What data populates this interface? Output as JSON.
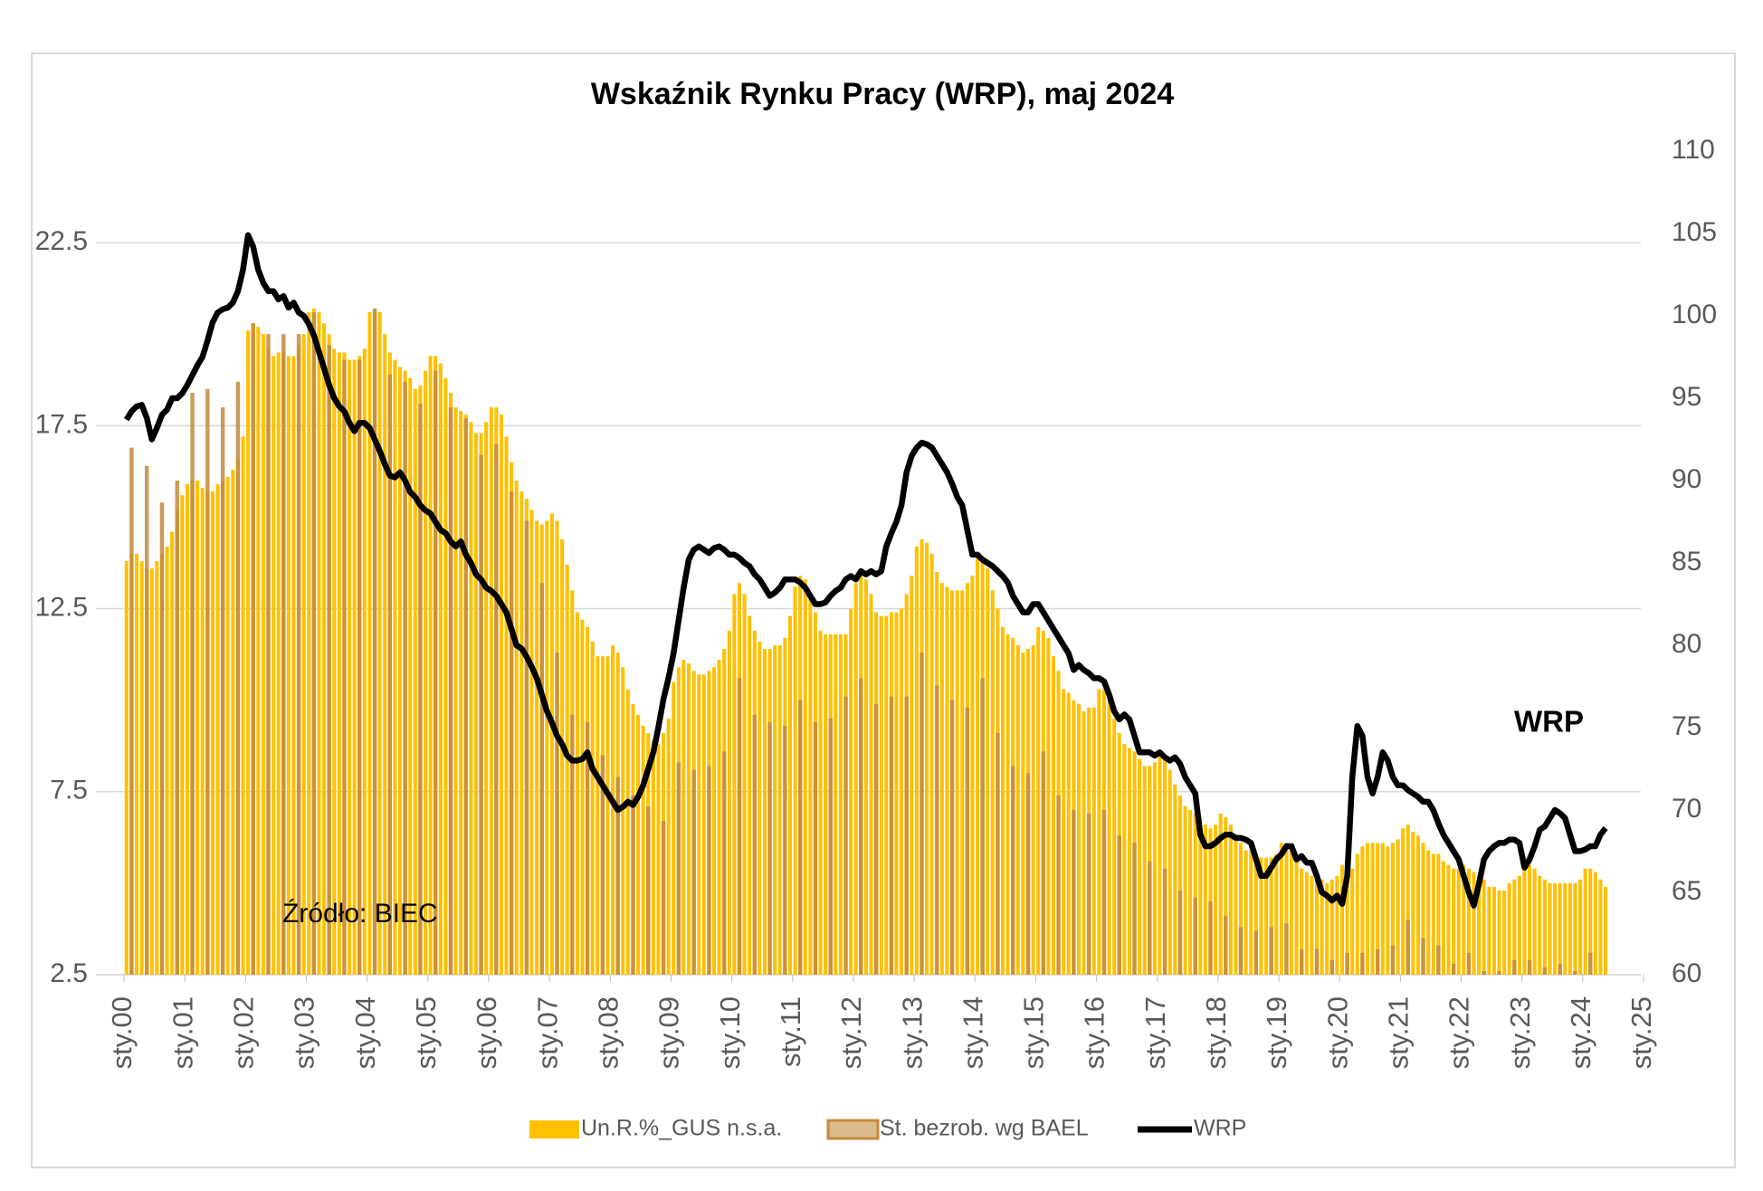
{
  "chart_data": {
    "type": "bar",
    "title": "Wskaźnik Rynku Pracy (WRP), maj 2024",
    "annotations": [
      "Źródło: BIEC",
      "WRP"
    ],
    "xlim": [
      0,
      300
    ],
    "xticks": [
      {
        "value": 0,
        "label": "sty.00"
      },
      {
        "value": 12,
        "label": "sty.01"
      },
      {
        "value": 24,
        "label": "sty.02"
      },
      {
        "value": 36,
        "label": "sty.03"
      },
      {
        "value": 48,
        "label": "sty.04"
      },
      {
        "value": 60,
        "label": "sty.05"
      },
      {
        "value": 72,
        "label": "sty.06"
      },
      {
        "value": 84,
        "label": "sty.07"
      },
      {
        "value": 96,
        "label": "sty.08"
      },
      {
        "value": 108,
        "label": "sty.09"
      },
      {
        "value": 120,
        "label": "sty.10"
      },
      {
        "value": 132,
        "label": "sty.11"
      },
      {
        "value": 144,
        "label": "sty.12"
      },
      {
        "value": 156,
        "label": "sty.13"
      },
      {
        "value": 168,
        "label": "sty.14"
      },
      {
        "value": 180,
        "label": "sty.15"
      },
      {
        "value": 192,
        "label": "sty.16"
      },
      {
        "value": 204,
        "label": "sty.17"
      },
      {
        "value": 216,
        "label": "sty.18"
      },
      {
        "value": 228,
        "label": "sty.19"
      },
      {
        "value": 240,
        "label": "sty.20"
      },
      {
        "value": 252,
        "label": "sty.21"
      },
      {
        "value": 264,
        "label": "sty.22"
      },
      {
        "value": 276,
        "label": "sty.23"
      },
      {
        "value": 288,
        "label": "sty.24"
      },
      {
        "value": 300,
        "label": "sty.25"
      }
    ],
    "ylim": [
      2.5,
      25
    ],
    "yticks": [
      2.5,
      7.5,
      12.5,
      17.5,
      22.5
    ],
    "y2lim": [
      60,
      110
    ],
    "y2ticks": [
      60,
      65,
      70,
      75,
      80,
      85,
      90,
      95,
      100,
      105,
      110
    ],
    "grid": true,
    "legend": "bottom",
    "series": [
      {
        "name": "Un.R.%_GUS n.s.a.",
        "type": "bar",
        "color": "#ffc000",
        "values": [
          13.8,
          14.0,
          14.0,
          13.8,
          13.6,
          13.6,
          13.8,
          14.0,
          14.2,
          14.6,
          15.2,
          15.6,
          15.9,
          16.0,
          16.0,
          15.8,
          15.7,
          15.7,
          15.9,
          16.0,
          16.1,
          16.3,
          16.6,
          17.2,
          20.1,
          20.3,
          20.2,
          20.0,
          19.6,
          19.4,
          19.5,
          19.5,
          19.4,
          19.4,
          19.7,
          20.0,
          20.6,
          20.7,
          20.6,
          20.3,
          20.0,
          19.6,
          19.5,
          19.5,
          19.3,
          19.3,
          19.4,
          19.6,
          20.6,
          20.7,
          20.6,
          20.0,
          19.5,
          19.3,
          19.1,
          19.0,
          18.8,
          18.5,
          18.6,
          19.0,
          19.4,
          19.4,
          19.2,
          18.8,
          18.4,
          18.0,
          17.9,
          17.8,
          17.6,
          17.3,
          17.3,
          17.6,
          18.0,
          18.0,
          17.8,
          17.2,
          16.5,
          16.0,
          15.7,
          15.5,
          15.2,
          14.9,
          14.8,
          14.9,
          15.1,
          14.9,
          14.4,
          13.7,
          13.0,
          12.4,
          12.2,
          12.0,
          11.6,
          11.2,
          11.2,
          11.2,
          11.5,
          11.3,
          10.9,
          10.3,
          9.9,
          9.6,
          9.3,
          9.1,
          8.9,
          8.8,
          9.1,
          9.5,
          10.5,
          10.9,
          11.1,
          11.0,
          10.8,
          10.7,
          10.7,
          10.8,
          10.9,
          11.1,
          11.4,
          11.9,
          12.9,
          13.2,
          12.9,
          12.3,
          11.9,
          11.6,
          11.4,
          11.4,
          11.5,
          11.5,
          11.7,
          12.3,
          13.1,
          13.4,
          13.3,
          12.8,
          12.4,
          11.9,
          11.8,
          11.8,
          11.8,
          11.8,
          11.8,
          12.5,
          13.2,
          13.5,
          13.3,
          12.9,
          12.4,
          12.3,
          12.3,
          12.4,
          12.4,
          12.5,
          12.9,
          13.4,
          14.2,
          14.4,
          14.3,
          14.0,
          13.5,
          13.2,
          13.1,
          13.0,
          13.0,
          13.0,
          13.2,
          13.4,
          13.9,
          13.9,
          13.6,
          13.0,
          12.5,
          12.0,
          11.8,
          11.7,
          11.5,
          11.3,
          11.4,
          11.5,
          12.0,
          11.9,
          11.7,
          11.2,
          10.8,
          10.3,
          10.2,
          10.0,
          9.9,
          9.7,
          9.8,
          9.8,
          10.3,
          10.3,
          10.0,
          9.5,
          9.1,
          8.8,
          8.7,
          8.6,
          8.4,
          8.2,
          8.2,
          8.3,
          8.6,
          8.5,
          8.1,
          7.7,
          7.4,
          7.1,
          7.0,
          6.9,
          6.8,
          6.6,
          6.5,
          6.6,
          6.9,
          6.8,
          6.6,
          6.3,
          6.1,
          5.9,
          5.9,
          5.8,
          5.7,
          5.7,
          5.7,
          5.8,
          6.1,
          6.1,
          5.9,
          5.6,
          5.4,
          5.3,
          5.2,
          5.2,
          5.1,
          5.0,
          5.1,
          5.2,
          5.5,
          5.5,
          5.4,
          5.8,
          6.0,
          6.1,
          6.1,
          6.1,
          6.1,
          6.0,
          6.1,
          6.2,
          6.5,
          6.6,
          6.4,
          6.3,
          6.1,
          5.9,
          5.8,
          5.8,
          5.6,
          5.5,
          5.4,
          5.4,
          5.5,
          5.4,
          5.3,
          5.2,
          5.1,
          4.9,
          4.9,
          4.8,
          4.8,
          5.0,
          5.1,
          5.2,
          5.5,
          5.5,
          5.4,
          5.2,
          5.1,
          5.0,
          5.0,
          5.0,
          5.0,
          5.0,
          5.0,
          5.1,
          5.4,
          5.4,
          5.3,
          5.1,
          4.9
        ]
      },
      {
        "name": "St. bezrob. wg BAEL",
        "type": "bar",
        "color": "#c48a3c",
        "values": [
          16.9,
          16.4,
          15.4,
          16.0,
          18.4,
          18.5,
          18.0,
          18.7,
          20.3,
          20.0,
          20.0,
          20.0,
          20.6,
          19.7,
          19.3,
          19.3,
          20.7,
          18.9,
          18.7,
          18.1,
          19.0,
          18.0,
          17.7,
          16.7,
          17.0,
          15.7,
          14.9,
          13.2,
          11.3,
          9.6,
          9.4,
          8.5,
          7.9,
          7.4,
          7.1,
          6.7,
          8.3,
          8.1,
          8.2,
          8.6,
          10.6,
          9.6,
          9.4,
          9.3,
          10.0,
          9.4,
          9.5,
          10.1,
          10.6,
          9.9,
          10.1,
          10.1,
          11.3,
          10.4,
          10.0,
          9.8,
          10.6,
          9.1,
          8.2,
          8.0,
          8.6,
          7.4,
          7.0,
          6.9,
          7.0,
          6.3,
          6.1,
          5.6,
          5.4,
          4.8,
          4.6,
          4.5,
          4.1,
          3.8,
          3.7,
          3.8,
          3.9,
          3.2,
          3.2,
          2.9,
          3.1,
          3.1,
          3.2,
          3.3,
          4.0,
          3.5,
          3.3,
          2.8,
          3.1,
          2.6,
          2.6,
          2.9,
          2.9,
          2.7,
          2.8,
          2.6,
          3.1
        ]
      },
      {
        "name": "WRP",
        "type": "line",
        "axis": "y2",
        "color": "#000000",
        "values": [
          93.7,
          94.2,
          94.5,
          94.6,
          93.8,
          92.5,
          93.2,
          94.0,
          94.3,
          95.0,
          95.0,
          95.3,
          95.8,
          96.4,
          97.0,
          97.5,
          98.5,
          99.6,
          100.2,
          100.4,
          100.5,
          100.8,
          101.5,
          102.8,
          104.9,
          104.2,
          102.8,
          102.0,
          101.5,
          101.5,
          101.0,
          101.2,
          100.5,
          100.8,
          100.2,
          100.0,
          99.5,
          98.8,
          97.8,
          96.8,
          95.8,
          95.0,
          94.5,
          94.2,
          93.5,
          93.0,
          93.5,
          93.5,
          93.2,
          92.5,
          91.8,
          91.0,
          90.3,
          90.2,
          90.5,
          90.0,
          89.3,
          89.0,
          88.5,
          88.2,
          88.0,
          87.5,
          87.0,
          86.8,
          86.3,
          86.0,
          86.3,
          85.5,
          85.0,
          84.3,
          84.0,
          83.5,
          83.3,
          83.0,
          82.5,
          82.0,
          81.0,
          80.0,
          79.8,
          79.3,
          78.7,
          78.0,
          77.0,
          76.0,
          75.3,
          74.5,
          74.0,
          73.3,
          73.0,
          73.0,
          73.1,
          73.5,
          72.5,
          72.0,
          71.5,
          71.0,
          70.5,
          70.0,
          70.2,
          70.5,
          70.3,
          70.8,
          71.5,
          72.5,
          73.5,
          75.0,
          76.7,
          78.0,
          79.5,
          81.5,
          83.5,
          85.2,
          85.8,
          86.0,
          85.8,
          85.6,
          85.9,
          86.0,
          85.8,
          85.5,
          85.5,
          85.3,
          85.0,
          84.8,
          84.3,
          84.0,
          83.5,
          83.0,
          83.2,
          83.5,
          84.0,
          84.0,
          84.0,
          83.8,
          83.5,
          83.0,
          82.5,
          82.5,
          82.6,
          83.0,
          83.3,
          83.5,
          84.0,
          84.2,
          84.0,
          84.5,
          84.3,
          84.5,
          84.3,
          84.5,
          86.0,
          86.8,
          87.5,
          88.5,
          90.5,
          91.5,
          92.0,
          92.3,
          92.2,
          92.0,
          91.5,
          91.0,
          90.5,
          89.8,
          89.0,
          88.5,
          87.0,
          85.5,
          85.5,
          85.2,
          85.0,
          84.8,
          84.5,
          84.2,
          83.8,
          83.0,
          82.5,
          82.0,
          82.0,
          82.5,
          82.5,
          82.0,
          81.5,
          81.0,
          80.5,
          80.0,
          79.5,
          78.5,
          78.8,
          78.5,
          78.3,
          78.0,
          78.0,
          77.8,
          77.0,
          76.0,
          75.5,
          75.8,
          75.5,
          74.5,
          73.5,
          73.5,
          73.5,
          73.3,
          73.5,
          73.2,
          73.0,
          73.2,
          72.8,
          72.0,
          71.5,
          71.0,
          68.5,
          67.8,
          67.8,
          68.0,
          68.3,
          68.5,
          68.5,
          68.3,
          68.3,
          68.2,
          68.0,
          67.0,
          66.0,
          66.0,
          66.5,
          67.0,
          67.3,
          67.8,
          67.8,
          67.0,
          67.2,
          66.8,
          66.8,
          66.0,
          65.0,
          64.8,
          64.5,
          64.8,
          64.3,
          66.0,
          72.0,
          75.1,
          74.5,
          72.0,
          71.0,
          72.0,
          73.5,
          73.0,
          72.0,
          71.5,
          71.5,
          71.2,
          71.0,
          70.8,
          70.5,
          70.5,
          70.0,
          69.2,
          68.5,
          68.0,
          67.5,
          67.0,
          66.0,
          65.0,
          64.2,
          65.5,
          67.0,
          67.5,
          67.8,
          68.0,
          68.0,
          68.2,
          68.2,
          68.0,
          66.5,
          67.0,
          67.8,
          68.8,
          69.0,
          69.5,
          70.0,
          69.8,
          69.5,
          68.5,
          67.5,
          67.5,
          67.6,
          67.8,
          67.8,
          68.5,
          68.9
        ]
      }
    ]
  }
}
